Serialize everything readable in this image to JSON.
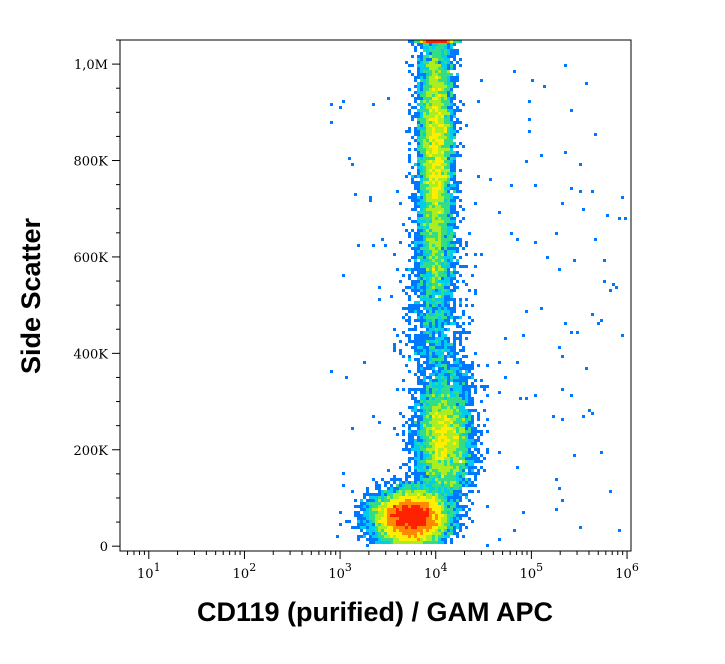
{
  "chart_data": {
    "type": "scatter",
    "plot_style": "flow-cytometry density dot plot (pseudocolor)",
    "title": "",
    "xlabel": "CD119 (purified) / GAM APC",
    "ylabel": "Side Scatter",
    "x_scale": "log",
    "y_scale": "linear",
    "xlim": [
      5,
      1100000
    ],
    "ylim": [
      -10000,
      1050000
    ],
    "x_ticks": [
      {
        "value": 10,
        "base": "10",
        "exp": "1"
      },
      {
        "value": 100,
        "base": "10",
        "exp": "2"
      },
      {
        "value": 1000,
        "base": "10",
        "exp": "3"
      },
      {
        "value": 10000,
        "base": "10",
        "exp": "4"
      },
      {
        "value": 100000,
        "base": "10",
        "exp": "5"
      },
      {
        "value": 1000000,
        "base": "10",
        "exp": "6"
      }
    ],
    "y_ticks": [
      {
        "value": 0,
        "label": "0"
      },
      {
        "value": 200000,
        "label": "200K"
      },
      {
        "value": 400000,
        "label": "400K"
      },
      {
        "value": 600000,
        "label": "600K"
      },
      {
        "value": 800000,
        "label": "800K"
      },
      {
        "value": 1000000,
        "label": "1,0M"
      }
    ],
    "grid": false,
    "legend": "none",
    "density_colors": [
      "#0000ff",
      "#0077ff",
      "#00ccee",
      "#33dd88",
      "#aaee22",
      "#ffee00",
      "#ff8800",
      "#ff2200"
    ],
    "populations": [
      {
        "description": "low side-scatter cluster",
        "x_center": 5500,
        "x_spread_decades": 0.18,
        "y_center": 60000,
        "y_spread": 25000,
        "relative_density": 1.0
      },
      {
        "description": "mid side-scatter cluster",
        "x_center": 12000,
        "x_spread_decades": 0.14,
        "y_center": 220000,
        "y_spread": 60000,
        "relative_density": 0.35
      },
      {
        "description": "high side-scatter column",
        "x_center": 10000,
        "x_spread_decades": 0.09,
        "y_center": 820000,
        "y_spread": 160000,
        "relative_density": 0.7
      }
    ]
  }
}
